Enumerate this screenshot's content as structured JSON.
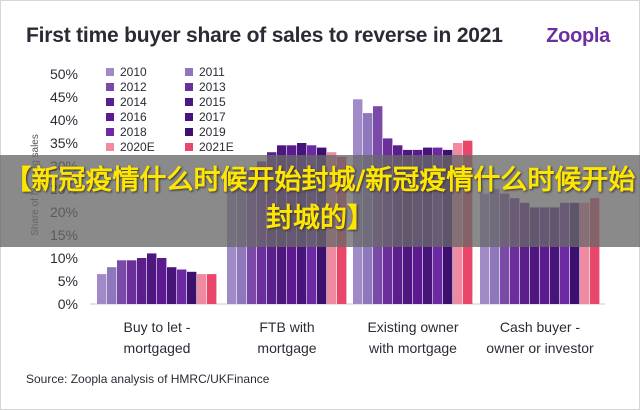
{
  "title": "First time buyer share of sales to reverse in 2021",
  "logo": "Zoopla",
  "source": "Source: Zoopla analysis of HMRC/UKFinance",
  "overlay_text": "【新冠疫情什么时候开始封城/新冠疫情什么时候开始封城的】",
  "chart_data": {
    "type": "bar",
    "title": "First time buyer share of sales to reverse in 2021",
    "ylabel": "Share of housing sales",
    "xlabel": "",
    "ylim": [
      0,
      50
    ],
    "yticks": [
      "0%",
      "5%",
      "10%",
      "15%",
      "20%",
      "25%",
      "30%",
      "35%",
      "40%",
      "45%",
      "50%"
    ],
    "categories": [
      "Buy to let - mortgaged",
      "FTB with mortgage",
      "Existing owner with mortgage",
      "Cash buyer - owner or investor"
    ],
    "category_lines": [
      [
        "Buy to let -",
        "mortgaged"
      ],
      [
        "FTB with",
        "mortgage"
      ],
      [
        "Existing owner",
        "with mortgage"
      ],
      [
        "Cash buyer -",
        "owner or investor"
      ]
    ],
    "grid": false,
    "legend_position": "top-left",
    "series": [
      {
        "name": "2010",
        "color": "#a08bc7",
        "values": [
          6.5,
          25,
          44.5,
          24
        ]
      },
      {
        "name": "2011",
        "color": "#8e78bb",
        "values": [
          8,
          27,
          41.5,
          25
        ]
      },
      {
        "name": "2012",
        "color": "#7b49a8",
        "values": [
          9.5,
          29,
          43,
          24
        ]
      },
      {
        "name": "2013",
        "color": "#6a2f9a",
        "values": [
          9.5,
          31,
          36,
          23
        ]
      },
      {
        "name": "2014",
        "color": "#5b1f8c",
        "values": [
          10,
          33,
          34.5,
          22
        ]
      },
      {
        "name": "2015",
        "color": "#4e1780",
        "values": [
          11,
          34.5,
          33.5,
          21
        ]
      },
      {
        "name": "2016",
        "color": "#5d1a90",
        "values": [
          10,
          34.5,
          33.5,
          21
        ]
      },
      {
        "name": "2017",
        "color": "#47147a",
        "values": [
          8,
          35,
          34,
          21
        ]
      },
      {
        "name": "2018",
        "color": "#6b2aa3",
        "values": [
          7.5,
          34.5,
          34,
          22
        ]
      },
      {
        "name": "2019",
        "color": "#3d0f6e",
        "values": [
          7,
          34,
          33.5,
          22
        ]
      },
      {
        "name": "2020E",
        "color": "#f08aa0",
        "values": [
          6.5,
          33,
          35,
          22
        ]
      },
      {
        "name": "2021E",
        "color": "#e8476a",
        "values": [
          6.5,
          32,
          35.5,
          23
        ]
      }
    ]
  }
}
